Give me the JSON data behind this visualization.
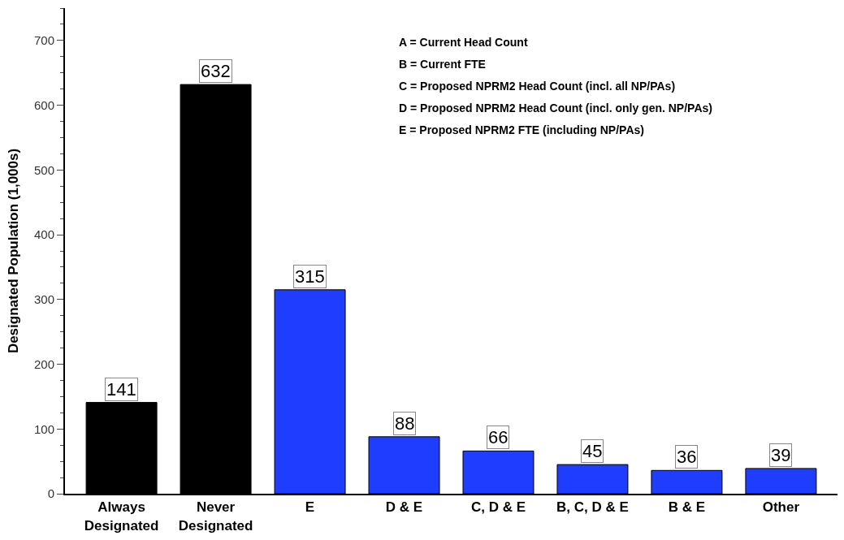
{
  "chart_data": {
    "type": "bar",
    "ylabel": "Designated Population (1,000s)",
    "categories": [
      "Always\nDesignated",
      "Never\nDesignated",
      "E",
      "D & E",
      "C, D & E",
      "B, C, D & E",
      "B & E",
      "Other"
    ],
    "values": [
      141,
      632,
      315,
      88,
      66,
      45,
      36,
      39
    ],
    "colors": [
      "#000000",
      "#000000",
      "#1f3dff",
      "#1f3dff",
      "#1f3dff",
      "#1f3dff",
      "#1f3dff",
      "#1f3dff"
    ],
    "ylim": [
      0,
      750
    ],
    "yticks": [
      0,
      100,
      200,
      300,
      400,
      500,
      600,
      700
    ],
    "data_labels": true,
    "annotations": [
      "A = Current Head Count",
      "B = Current FTE",
      "C = Proposed NPRM2 Head Count (incl. all NP/PAs)",
      "D = Proposed NPRM2 Head Count (incl. only gen. NP/PAs)",
      "E = Proposed NPRM2 FTE (including NP/PAs)"
    ]
  }
}
